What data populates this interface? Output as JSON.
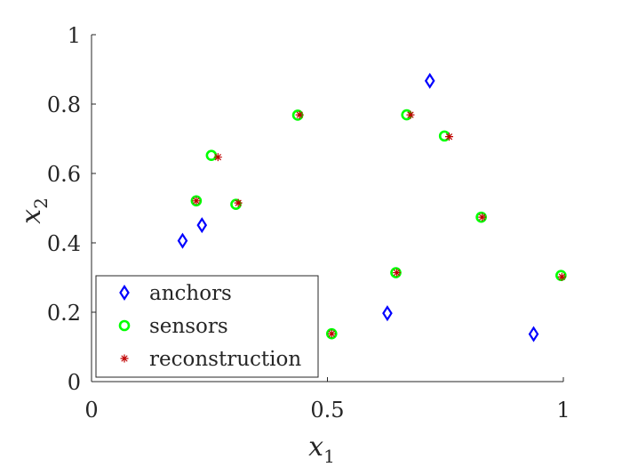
{
  "chart_data": {
    "type": "scatter",
    "title": "",
    "xlabel": "x",
    "xlabel_sub": "1",
    "ylabel": "x",
    "ylabel_sub": "2",
    "xlim": [
      0,
      1
    ],
    "ylim": [
      0,
      1
    ],
    "xticks": [
      0,
      0.5,
      1
    ],
    "xtick_labels": [
      "0",
      "0.5",
      "1"
    ],
    "yticks": [
      0,
      0.2,
      0.4,
      0.6,
      0.8,
      1
    ],
    "ytick_labels": [
      "0",
      "0.2",
      "0.4",
      "0.6",
      "0.8",
      "1"
    ],
    "grid": false,
    "legend_position": "bottom-left",
    "series": [
      {
        "name": "anchors",
        "marker": "diamond",
        "color": "#0000ff",
        "points": [
          [
            0.193,
            0.406
          ],
          [
            0.234,
            0.451
          ],
          [
            0.627,
            0.197
          ],
          [
            0.717,
            0.867
          ],
          [
            0.937,
            0.137
          ]
        ]
      },
      {
        "name": "sensors",
        "marker": "circle",
        "color": "#00ff00",
        "points": [
          [
            0.222,
            0.521
          ],
          [
            0.254,
            0.652
          ],
          [
            0.306,
            0.511
          ],
          [
            0.437,
            0.768
          ],
          [
            0.509,
            0.138
          ],
          [
            0.645,
            0.314
          ],
          [
            0.668,
            0.769
          ],
          [
            0.748,
            0.708
          ],
          [
            0.826,
            0.474
          ],
          [
            0.995,
            0.306
          ]
        ]
      },
      {
        "name": "reconstruction",
        "marker": "asterisk",
        "color": "#c00000",
        "points": [
          [
            0.222,
            0.521
          ],
          [
            0.268,
            0.647
          ],
          [
            0.311,
            0.515
          ],
          [
            0.441,
            0.769
          ],
          [
            0.509,
            0.138
          ],
          [
            0.647,
            0.314
          ],
          [
            0.676,
            0.769
          ],
          [
            0.758,
            0.706
          ],
          [
            0.828,
            0.474
          ],
          [
            0.997,
            0.302
          ]
        ]
      }
    ]
  }
}
